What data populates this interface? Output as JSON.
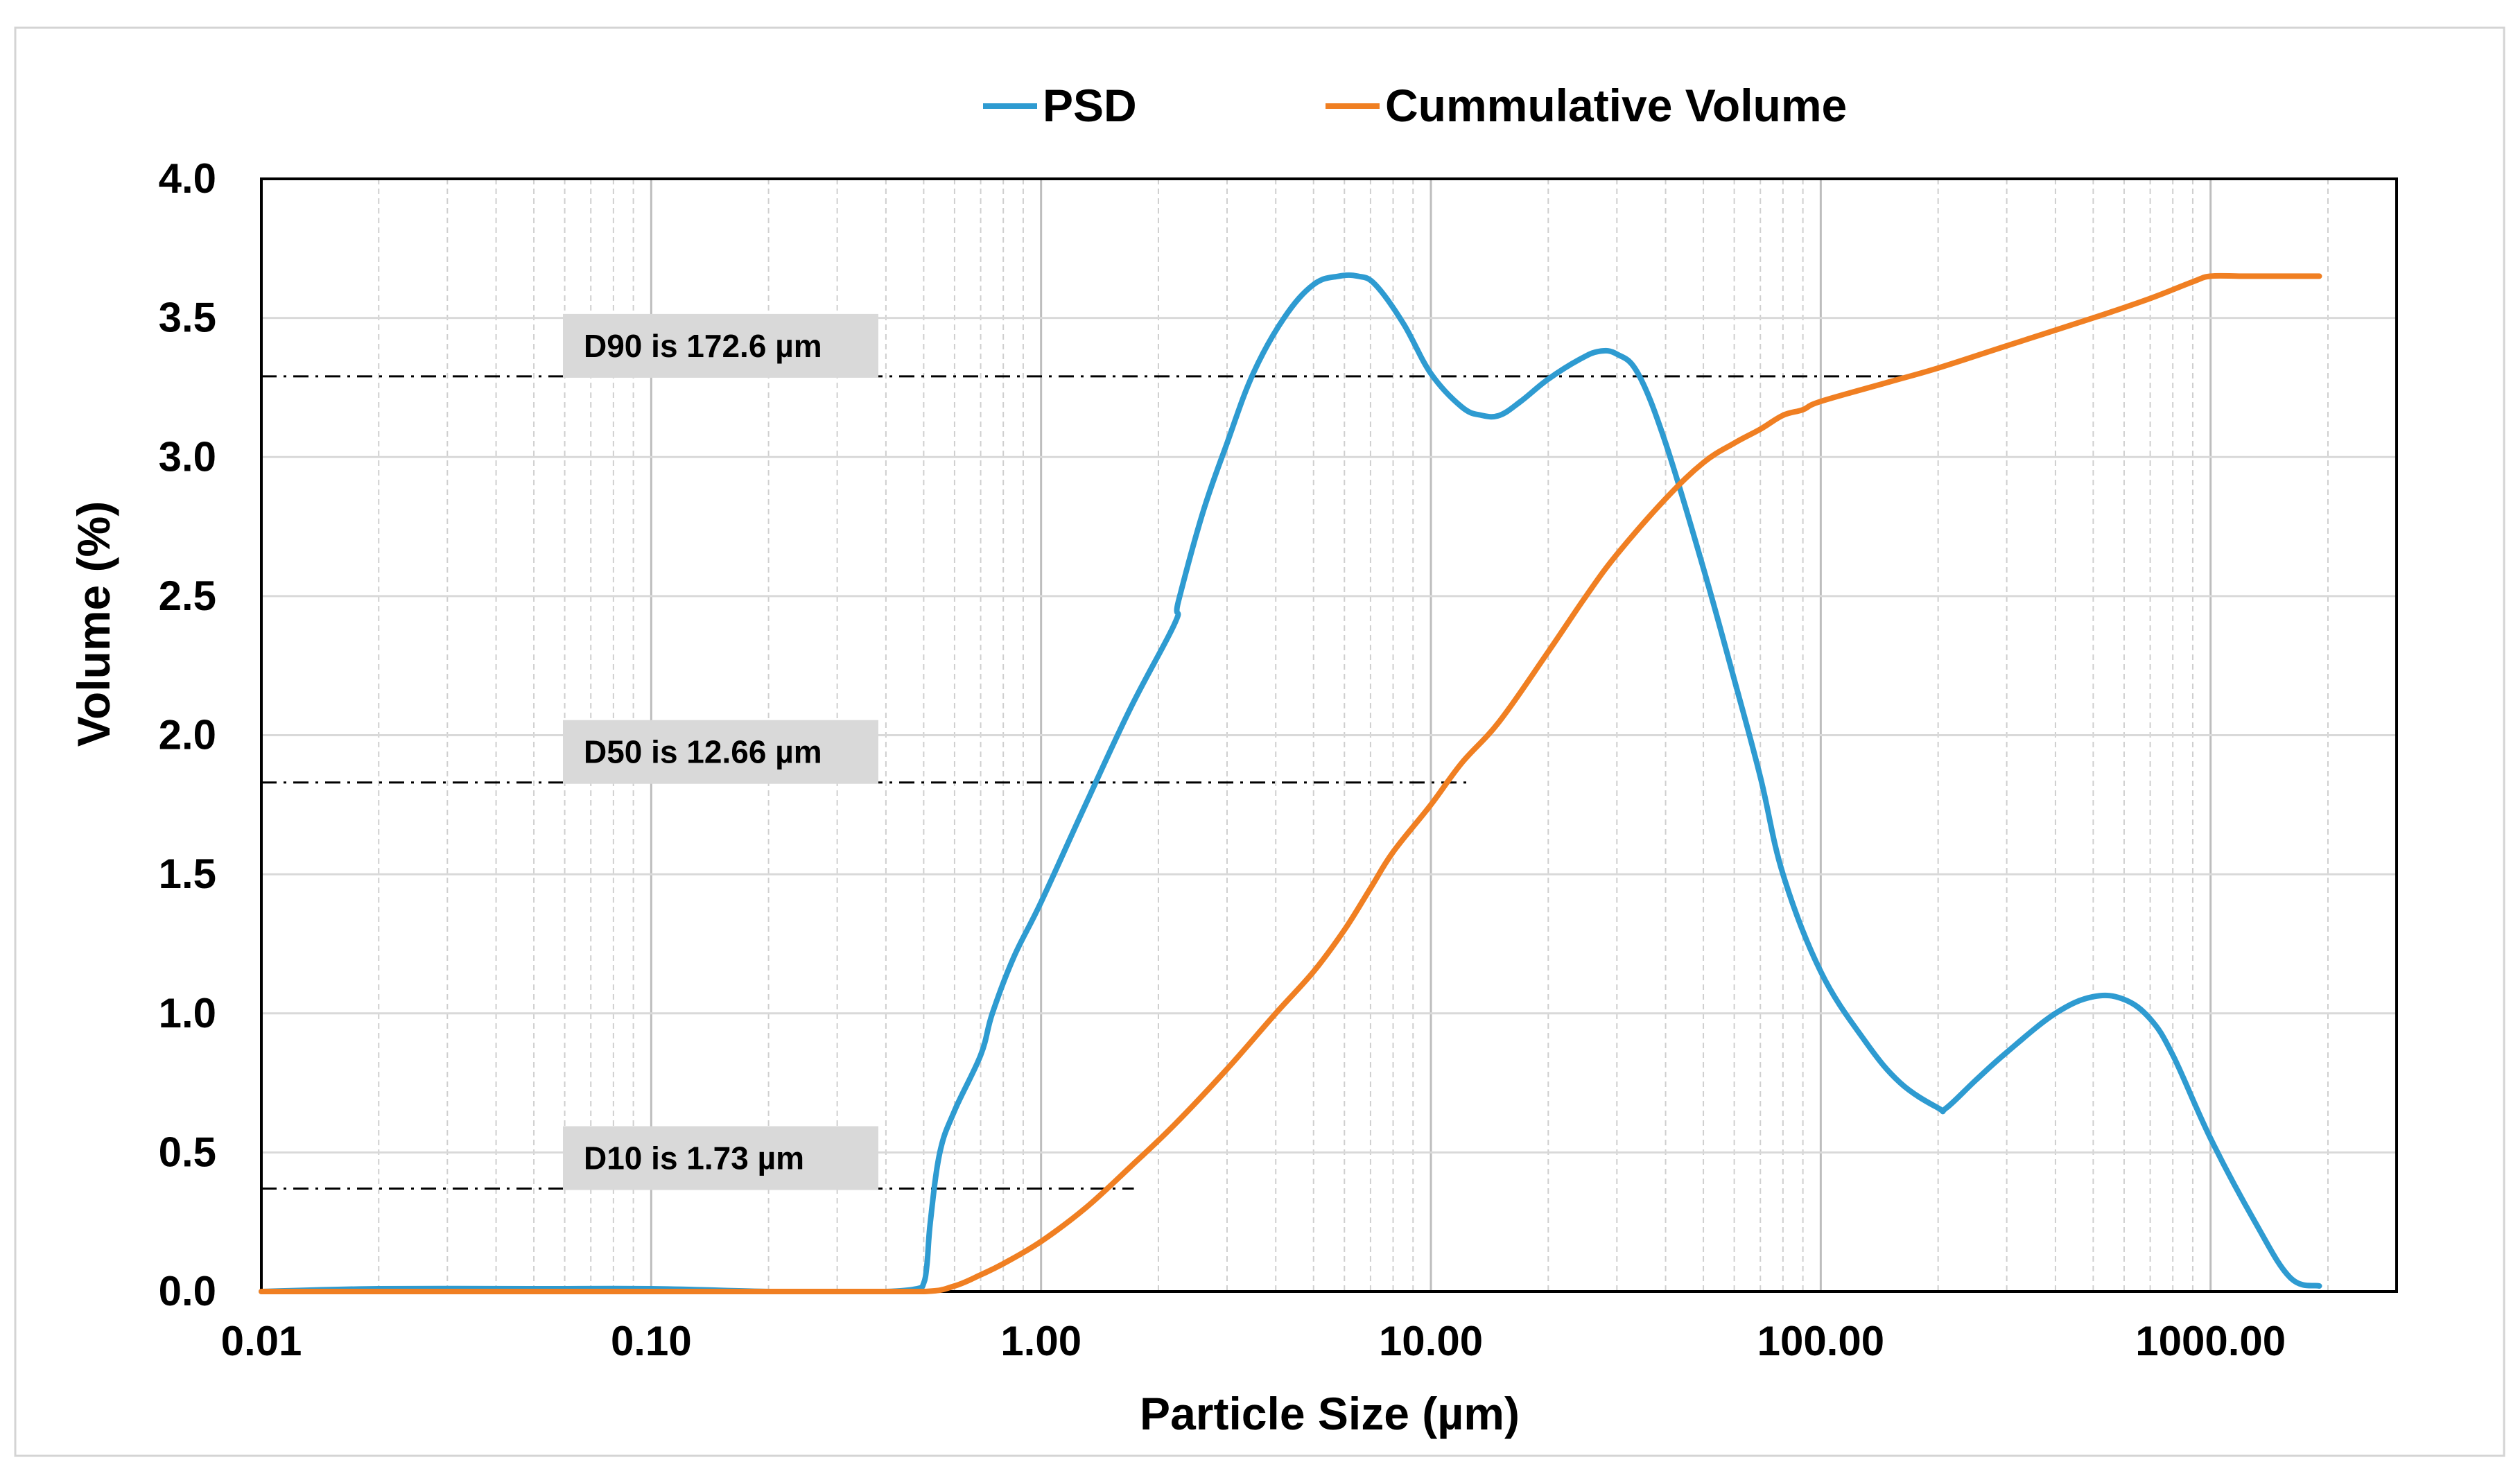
{
  "chart_data": {
    "type": "line",
    "title": "",
    "xlabel": "Particle Size (µm)",
    "ylabel": "Volume (%)",
    "xscale": "log",
    "xlim": [
      0.01,
      3000
    ],
    "ylim": [
      0,
      4.0
    ],
    "x_ticks": [
      {
        "value": 0.01,
        "label": "0.01"
      },
      {
        "value": 0.1,
        "label": "0.10"
      },
      {
        "value": 1,
        "label": "1.00"
      },
      {
        "value": 10,
        "label": "10.00"
      },
      {
        "value": 100,
        "label": "100.00"
      },
      {
        "value": 1000,
        "label": "1000.00"
      }
    ],
    "y_ticks": [
      {
        "value": 0.0,
        "label": "0.0"
      },
      {
        "value": 0.5,
        "label": "0.5"
      },
      {
        "value": 1.0,
        "label": "1.0"
      },
      {
        "value": 1.5,
        "label": "1.5"
      },
      {
        "value": 2.0,
        "label": "2.0"
      },
      {
        "value": 2.5,
        "label": "2.5"
      },
      {
        "value": 3.0,
        "label": "3.0"
      },
      {
        "value": 3.5,
        "label": "3.5"
      },
      {
        "value": 4.0,
        "label": "4.0"
      }
    ],
    "grid": true,
    "legend_position": "top-center",
    "series": [
      {
        "name": "PSD",
        "color": "#2e9bd1",
        "x": [
          0.01,
          0.02,
          0.05,
          0.1,
          0.2,
          0.3,
          0.4,
          0.48,
          0.5,
          0.51,
          0.52,
          0.55,
          0.6,
          0.7,
          0.75,
          0.85,
          1.0,
          1.3,
          1.7,
          2.2,
          2.25,
          2.6,
          3.0,
          3.5,
          4.2,
          5.0,
          5.8,
          6.5,
          7.2,
          8.5,
          10,
          12,
          13.5,
          15,
          17,
          20,
          24,
          27,
          30,
          34,
          40,
          50,
          60,
          70,
          80,
          100,
          130,
          160,
          200,
          210,
          250,
          300,
          400,
          500,
          600,
          700,
          800,
          1000,
          1300,
          1600,
          1900
        ],
        "y": [
          0.0,
          0.01,
          0.01,
          0.01,
          0.0,
          0.0,
          0.0,
          0.01,
          0.03,
          0.1,
          0.25,
          0.5,
          0.65,
          0.85,
          1.0,
          1.2,
          1.4,
          1.75,
          2.1,
          2.4,
          2.48,
          2.8,
          3.05,
          3.3,
          3.5,
          3.62,
          3.65,
          3.65,
          3.62,
          3.48,
          3.3,
          3.18,
          3.15,
          3.15,
          3.2,
          3.28,
          3.35,
          3.38,
          3.37,
          3.3,
          3.05,
          2.6,
          2.2,
          1.85,
          1.5,
          1.15,
          0.9,
          0.75,
          0.66,
          0.66,
          0.76,
          0.86,
          1.0,
          1.06,
          1.05,
          0.98,
          0.85,
          0.55,
          0.25,
          0.05,
          0.02
        ]
      },
      {
        "name": "Cummulative Volume",
        "color": "#f07f22",
        "x": [
          0.01,
          0.05,
          0.1,
          0.3,
          0.5,
          0.6,
          0.7,
          0.8,
          1.0,
          1.3,
          1.7,
          2.2,
          3.0,
          4.0,
          5.0,
          6.0,
          7.0,
          8.0,
          10,
          12,
          15,
          20,
          25,
          30,
          40,
          50,
          60,
          70,
          80,
          90,
          100,
          150,
          200,
          300,
          500,
          700,
          900,
          1000,
          1200,
          1500,
          1900
        ],
        "y": [
          0.0,
          0.0,
          0.0,
          0.0,
          0.0,
          0.02,
          0.06,
          0.1,
          0.18,
          0.3,
          0.45,
          0.6,
          0.8,
          1.0,
          1.15,
          1.3,
          1.45,
          1.58,
          1.75,
          1.9,
          2.05,
          2.3,
          2.5,
          2.65,
          2.85,
          2.98,
          3.05,
          3.1,
          3.15,
          3.17,
          3.2,
          3.27,
          3.32,
          3.4,
          3.5,
          3.57,
          3.63,
          3.65,
          3.65,
          3.65,
          3.65
        ]
      }
    ],
    "reference_lines": [
      {
        "label": "D90 is 172.6 µm",
        "x_end": 172.6,
        "y": 3.29
      },
      {
        "label": "D50 is 12.66 µm",
        "x_end": 12.66,
        "y": 1.83
      },
      {
        "label": "D10 is 1.73 µm",
        "x_end": 1.73,
        "y": 0.37
      }
    ]
  }
}
